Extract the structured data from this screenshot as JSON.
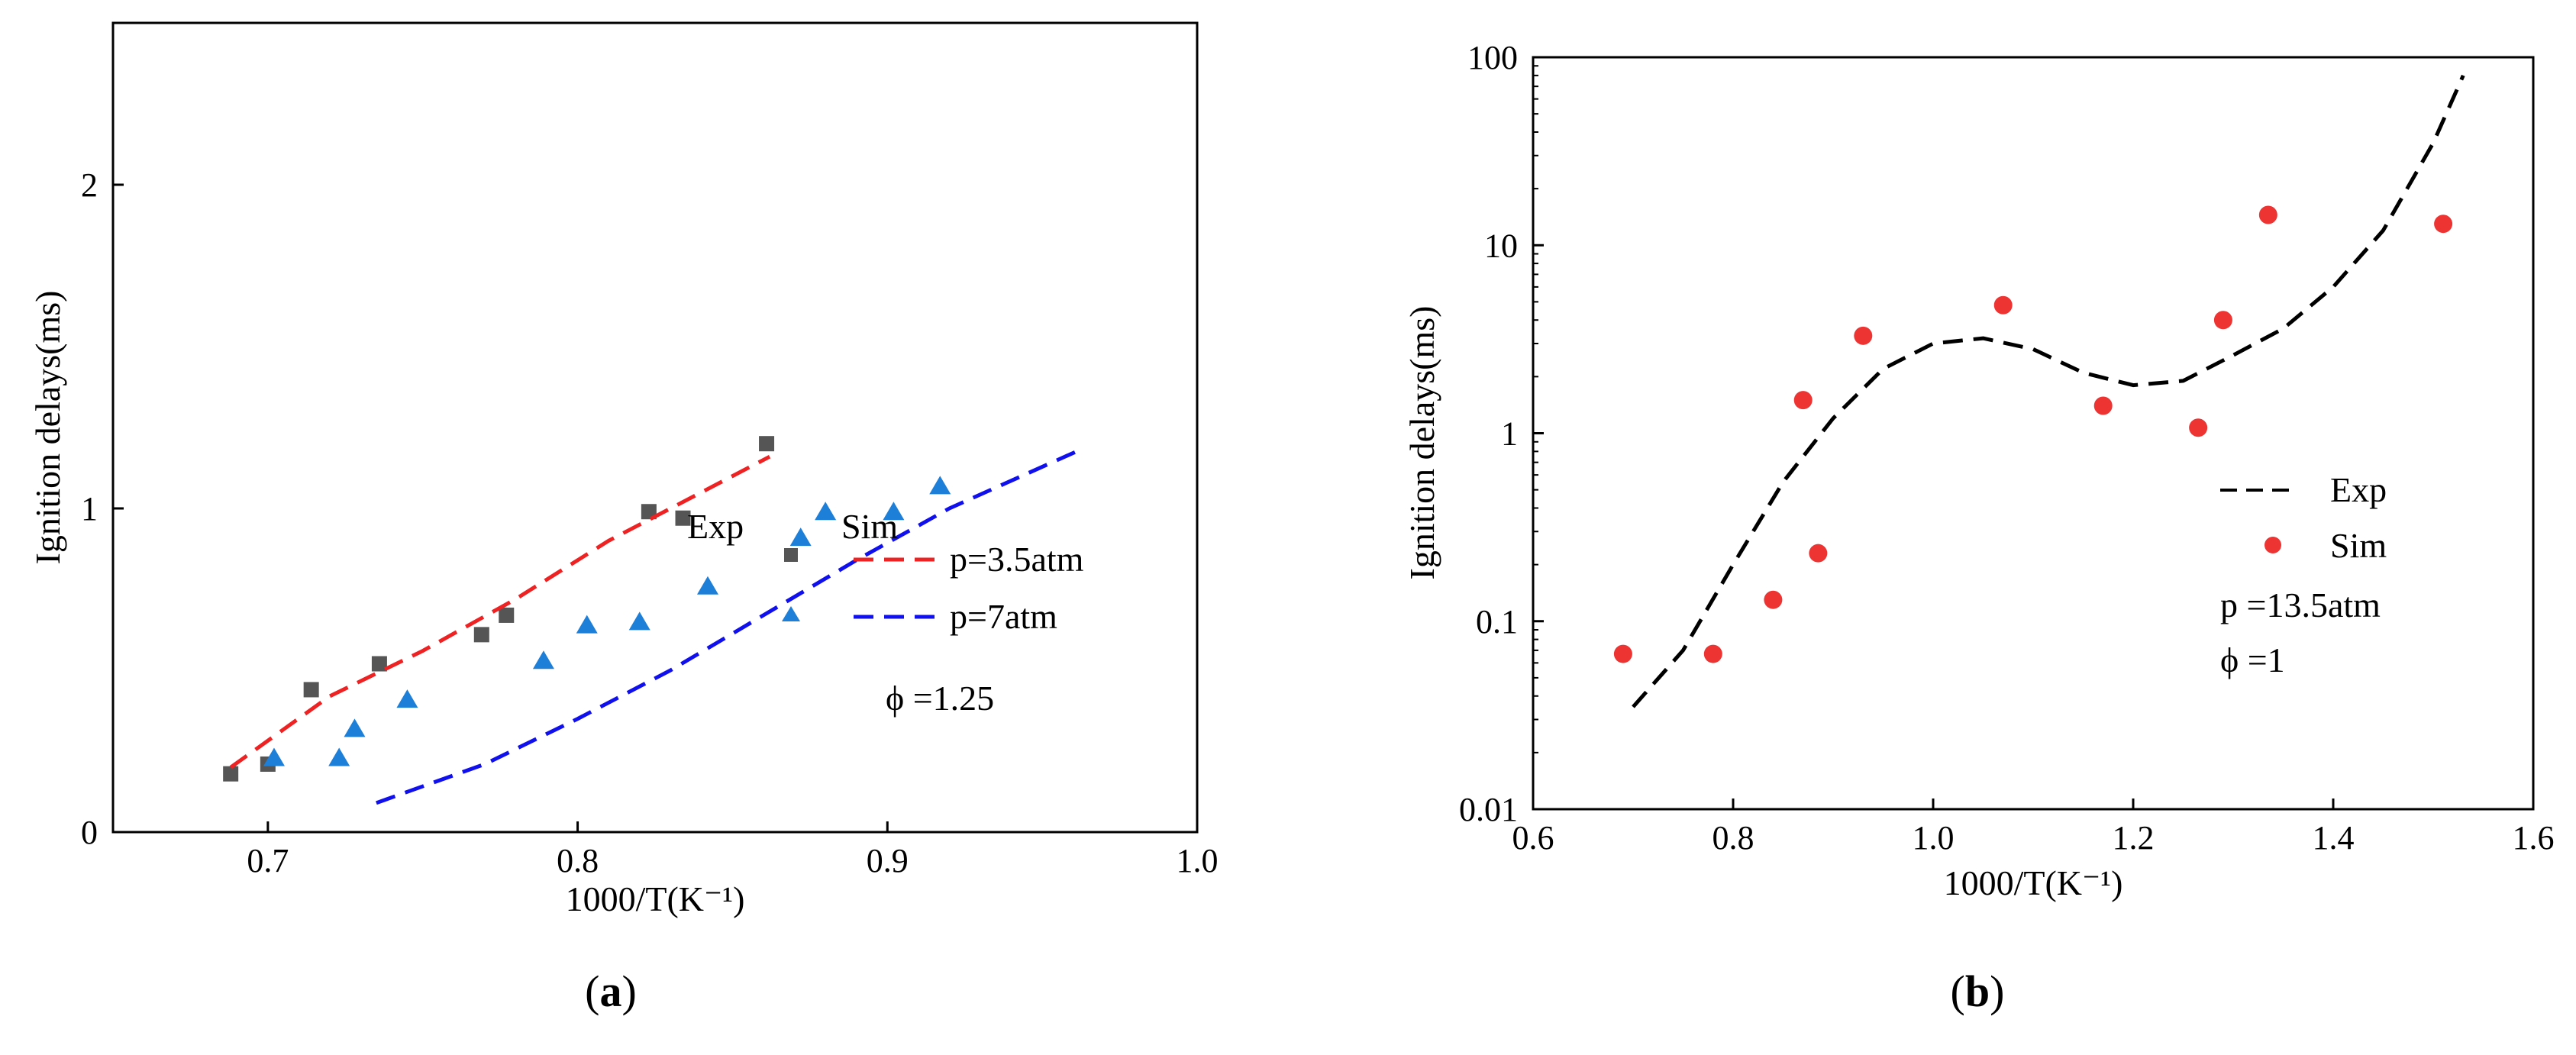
{
  "chart_data": [
    {
      "panel": "a",
      "type": "scatter",
      "caption": {
        "open": "(",
        "letter": "a",
        "close": ")"
      },
      "xlabel": "1000/T(K⁻¹)",
      "ylabel": "Ignition delays(ms)",
      "xlim": [
        0.65,
        1.0
      ],
      "ylim": [
        0,
        2.5
      ],
      "xticks": [
        0.7,
        0.8,
        0.9,
        1.0
      ],
      "xtick_labels": [
        "0.7",
        "0.8",
        "0.9",
        "1.0"
      ],
      "yticks": [
        0,
        1,
        2
      ],
      "ytick_labels": [
        "0",
        "1",
        "2"
      ],
      "legend": {
        "exp_header": "Exp",
        "sim_header": "Sim",
        "entries": [
          "p=3.5atm",
          "p=7atm"
        ],
        "note": "ϕ =1.25"
      },
      "series": [
        {
          "name": "Exp p=3.5atm",
          "kind": "markers",
          "marker": "square",
          "color": "#555555",
          "x": [
            0.688,
            0.7,
            0.714,
            0.736,
            0.769,
            0.777,
            0.823,
            0.834,
            0.861
          ],
          "y": [
            0.18,
            0.21,
            0.44,
            0.52,
            0.61,
            0.67,
            0.99,
            0.97,
            1.2
          ]
        },
        {
          "name": "Exp p=7atm",
          "kind": "markers",
          "marker": "triangle",
          "color": "#1e7fd8",
          "x": [
            0.702,
            0.723,
            0.728,
            0.745,
            0.789,
            0.803,
            0.82,
            0.842,
            0.872,
            0.88,
            0.902,
            0.917
          ],
          "y": [
            0.23,
            0.23,
            0.32,
            0.41,
            0.53,
            0.64,
            0.65,
            0.76,
            0.91,
            0.99,
            0.99,
            1.07
          ]
        },
        {
          "name": "Sim p=3.5atm",
          "kind": "line",
          "dash": "dashed",
          "color": "#ee2222",
          "x": [
            0.688,
            0.72,
            0.75,
            0.78,
            0.81,
            0.84,
            0.862
          ],
          "y": [
            0.2,
            0.42,
            0.56,
            0.72,
            0.9,
            1.05,
            1.16
          ]
        },
        {
          "name": "Sim p=7atm",
          "kind": "line",
          "dash": "dashed",
          "color": "#1010ee",
          "x": [
            0.735,
            0.77,
            0.8,
            0.83,
            0.86,
            0.89,
            0.92,
            0.962
          ],
          "y": [
            0.09,
            0.21,
            0.35,
            0.5,
            0.67,
            0.84,
            1.0,
            1.18
          ]
        }
      ]
    },
    {
      "panel": "b",
      "type": "scatter",
      "caption": {
        "open": "(",
        "letter": "b",
        "close": ")"
      },
      "xlabel": "1000/T(K⁻¹)",
      "ylabel": "Ignition delays(ms)",
      "xlim": [
        0.6,
        1.6
      ],
      "ylim": [
        0.01,
        100
      ],
      "yscale": "log",
      "xticks": [
        0.6,
        0.8,
        1.0,
        1.2,
        1.4,
        1.6
      ],
      "xtick_labels": [
        "0.6",
        "0.8",
        "1.0",
        "1.2",
        "1.4",
        "1.6"
      ],
      "yticks": [
        0.01,
        0.1,
        1,
        10,
        100
      ],
      "ytick_labels": [
        "0.01",
        "0.1",
        "1",
        "10",
        "100"
      ],
      "legend": {
        "entries": [
          "Exp",
          "Sim"
        ],
        "note1": "p =13.5atm",
        "note2": "ϕ =1"
      },
      "series": [
        {
          "name": "Exp",
          "kind": "line",
          "dash": "dashed",
          "color": "#000000",
          "x": [
            0.7,
            0.75,
            0.8,
            0.85,
            0.9,
            0.95,
            1.0,
            1.05,
            1.1,
            1.15,
            1.2,
            1.25,
            1.3,
            1.35,
            1.4,
            1.45,
            1.5,
            1.53
          ],
          "y": [
            0.035,
            0.07,
            0.2,
            0.55,
            1.2,
            2.2,
            3.0,
            3.2,
            2.8,
            2.1,
            1.8,
            1.9,
            2.6,
            3.6,
            6.0,
            12,
            35,
            80
          ]
        },
        {
          "name": "Sim",
          "kind": "markers",
          "marker": "circle",
          "color": "#ee3333",
          "x": [
            0.69,
            0.78,
            0.84,
            0.87,
            0.885,
            0.93,
            1.07,
            1.17,
            1.265,
            1.29,
            1.335,
            1.51
          ],
          "y": [
            0.067,
            0.067,
            0.13,
            1.5,
            0.23,
            3.3,
            4.8,
            1.4,
            1.07,
            4.0,
            14.5,
            13.0
          ]
        }
      ]
    }
  ]
}
